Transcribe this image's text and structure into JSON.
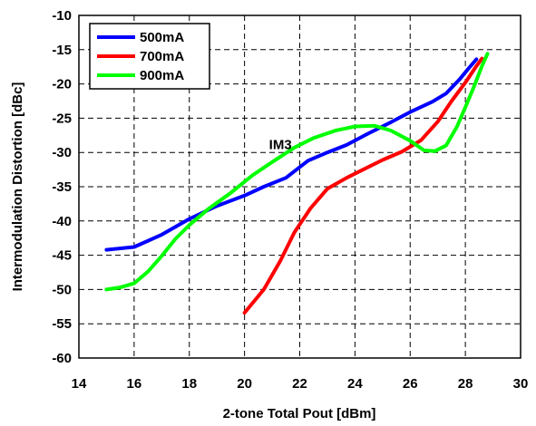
{
  "chart_data": {
    "type": "line",
    "title": "",
    "xlabel": "2-tone Total Pout  [dBm]",
    "ylabel": "Intermodulation Distortion  [dBc]",
    "xlim": [
      14,
      30
    ],
    "ylim": [
      -60,
      -10
    ],
    "x_ticks": [
      14,
      16,
      18,
      20,
      22,
      24,
      26,
      28,
      30
    ],
    "y_ticks": [
      -10,
      -15,
      -20,
      -25,
      -30,
      -35,
      -40,
      -45,
      -50,
      -55,
      -60
    ],
    "grid": true,
    "legend_position": "top-left",
    "annotations": [
      {
        "text": "IM3",
        "x": 21.3,
        "y": -29.5
      }
    ],
    "series": [
      {
        "name": "500mA",
        "color": "#0000ff",
        "points": [
          [
            15.0,
            -44.2
          ],
          [
            16.0,
            -43.8
          ],
          [
            17.0,
            -42.0
          ],
          [
            18.0,
            -39.7
          ],
          [
            19.0,
            -37.8
          ],
          [
            20.0,
            -36.3
          ],
          [
            20.7,
            -35.0
          ],
          [
            21.5,
            -33.7
          ],
          [
            22.3,
            -31.2
          ],
          [
            23.0,
            -30.0
          ],
          [
            23.7,
            -28.9
          ],
          [
            24.5,
            -27.2
          ],
          [
            25.3,
            -25.6
          ],
          [
            26.0,
            -24.1
          ],
          [
            26.8,
            -22.6
          ],
          [
            27.3,
            -21.4
          ],
          [
            27.8,
            -19.3
          ],
          [
            28.1,
            -17.8
          ],
          [
            28.4,
            -16.4
          ]
        ]
      },
      {
        "name": "700mA",
        "color": "#ff0000",
        "points": [
          [
            20.0,
            -53.4
          ],
          [
            20.7,
            -50.0
          ],
          [
            21.3,
            -45.8
          ],
          [
            21.8,
            -41.7
          ],
          [
            22.4,
            -38.1
          ],
          [
            23.0,
            -35.3
          ],
          [
            23.7,
            -33.7
          ],
          [
            24.4,
            -32.3
          ],
          [
            25.0,
            -31.1
          ],
          [
            25.7,
            -29.9
          ],
          [
            26.4,
            -28.2
          ],
          [
            27.0,
            -25.5
          ],
          [
            27.5,
            -22.5
          ],
          [
            28.0,
            -19.8
          ],
          [
            28.4,
            -17.4
          ],
          [
            28.6,
            -16.3
          ]
        ]
      },
      {
        "name": "900mA",
        "color": "#00ff00",
        "points": [
          [
            15.0,
            -50.0
          ],
          [
            15.5,
            -49.7
          ],
          [
            16.0,
            -49.1
          ],
          [
            16.5,
            -47.4
          ],
          [
            17.0,
            -45.1
          ],
          [
            17.5,
            -42.6
          ],
          [
            18.0,
            -40.6
          ],
          [
            18.7,
            -38.2
          ],
          [
            19.5,
            -35.9
          ],
          [
            20.3,
            -33.3
          ],
          [
            21.0,
            -31.4
          ],
          [
            21.8,
            -29.3
          ],
          [
            22.5,
            -27.9
          ],
          [
            23.3,
            -26.8
          ],
          [
            24.0,
            -26.2
          ],
          [
            24.7,
            -26.1
          ],
          [
            25.3,
            -26.8
          ],
          [
            26.0,
            -28.3
          ],
          [
            26.5,
            -29.7
          ],
          [
            26.9,
            -29.8
          ],
          [
            27.3,
            -29.0
          ],
          [
            27.7,
            -26.2
          ],
          [
            28.0,
            -23.4
          ],
          [
            28.3,
            -20.5
          ],
          [
            28.6,
            -17.4
          ],
          [
            28.8,
            -15.6
          ]
        ]
      }
    ]
  }
}
